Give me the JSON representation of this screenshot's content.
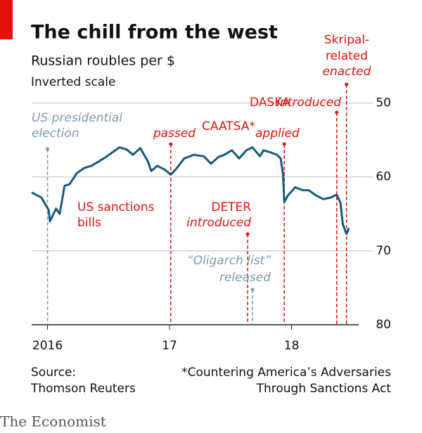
{
  "chart_data": {
    "type": "line",
    "title": "The chill from the west",
    "subtitle": "Russian roubles per $",
    "note": "Inverted scale",
    "x": [
      2015.87,
      2015.95,
      2016.01,
      2016.02,
      2016.07,
      2016.1,
      2016.14,
      2016.18,
      2016.24,
      2016.3,
      2016.36,
      2016.41,
      2016.47,
      2016.53,
      2016.59,
      2016.65,
      2016.7,
      2016.76,
      2016.82,
      2016.85,
      2016.9,
      2016.96,
      2017.01,
      2017.05,
      2017.12,
      2017.2,
      2017.28,
      2017.34,
      2017.4,
      2017.45,
      2017.51,
      2017.57,
      2017.63,
      2017.68,
      2017.74,
      2017.77,
      2017.83,
      2017.88,
      2017.91,
      2017.93,
      2017.94,
      2017.97,
      2018.03,
      2018.09,
      2018.14,
      2018.2,
      2018.26,
      2018.32,
      2018.37,
      2018.4,
      2018.42,
      2018.45,
      2018.47
    ],
    "series": [
      {
        "color": "#175a79",
        "values": [
          62.1,
          62.8,
          64.5,
          66,
          64.3,
          65,
          61.2,
          61,
          59.5,
          58.8,
          58.5,
          58,
          57.4,
          56.7,
          56,
          56.3,
          57,
          56.1,
          57.8,
          59.2,
          58.5,
          59,
          59.7,
          59,
          57.5,
          57,
          57.2,
          58.2,
          57.3,
          57,
          56.4,
          57.5,
          56.4,
          56,
          57.2,
          56.4,
          56.7,
          57,
          57.5,
          59.6,
          63.4,
          62.5,
          61.4,
          61.8,
          61.8,
          62.5,
          63,
          62.8,
          62.4,
          63.5,
          66.4,
          67.7,
          66.9
        ]
      }
    ],
    "xlim": [
      2015.87,
      2018.55
    ],
    "xticks": [
      {
        "value": 2016,
        "label": "2016"
      },
      {
        "value": 2017,
        "label": "17"
      },
      {
        "value": 2018,
        "label": "18"
      }
    ],
    "ylim": [
      47,
      80
    ],
    "inverted": true,
    "yticks": [
      50,
      60,
      70,
      80
    ],
    "grid": true,
    "colors": {
      "red": "#e3120b",
      "blue": "#7a9bb0"
    },
    "annotations": [
      {
        "text": "US presidential",
        "italic": true,
        "color": "blue"
      },
      {
        "text": "election",
        "italic": true,
        "color": "blue"
      },
      {
        "text": "passed",
        "italic": true,
        "color": "red"
      },
      {
        "text": "CAATSA*",
        "italic": false,
        "color": "red"
      },
      {
        "text": "applied",
        "italic": true,
        "color": "red"
      },
      {
        "text": "DASKA",
        "italic": false,
        "color": "red"
      },
      {
        "text": "introduced",
        "italic": true,
        "color": "red"
      },
      {
        "text": "Skripal-",
        "italic": false,
        "color": "red"
      },
      {
        "text": "related",
        "italic": false,
        "color": "red"
      },
      {
        "text": "enacted",
        "italic": true,
        "color": "red"
      },
      {
        "text": "US sanctions",
        "italic": false,
        "color": "red"
      },
      {
        "text": "bills",
        "italic": false,
        "color": "red"
      },
      {
        "text": "DETER",
        "italic": false,
        "color": "red"
      },
      {
        "text": "introduced",
        "italic": true,
        "color": "red"
      },
      {
        "text": "“Oligarch list”",
        "italic": true,
        "color": "blue"
      },
      {
        "text": "released",
        "italic": true,
        "color": "blue"
      }
    ],
    "events": [
      {
        "x": 2016.0,
        "color": "blue"
      },
      {
        "x": 2017.01,
        "color": "red"
      },
      {
        "x": 2017.64,
        "color": "red"
      },
      {
        "x": 2017.68,
        "color": "blue"
      },
      {
        "x": 2017.94,
        "color": "red"
      },
      {
        "x": 2018.37,
        "color": "red"
      },
      {
        "x": 2018.45,
        "color": "red"
      }
    ],
    "source": [
      "Source:",
      "Thomson Reuters"
    ],
    "footnote": [
      "*Countering America’s Adversaries",
      "Through Sanctions Act"
    ],
    "brand": "The Economist"
  }
}
